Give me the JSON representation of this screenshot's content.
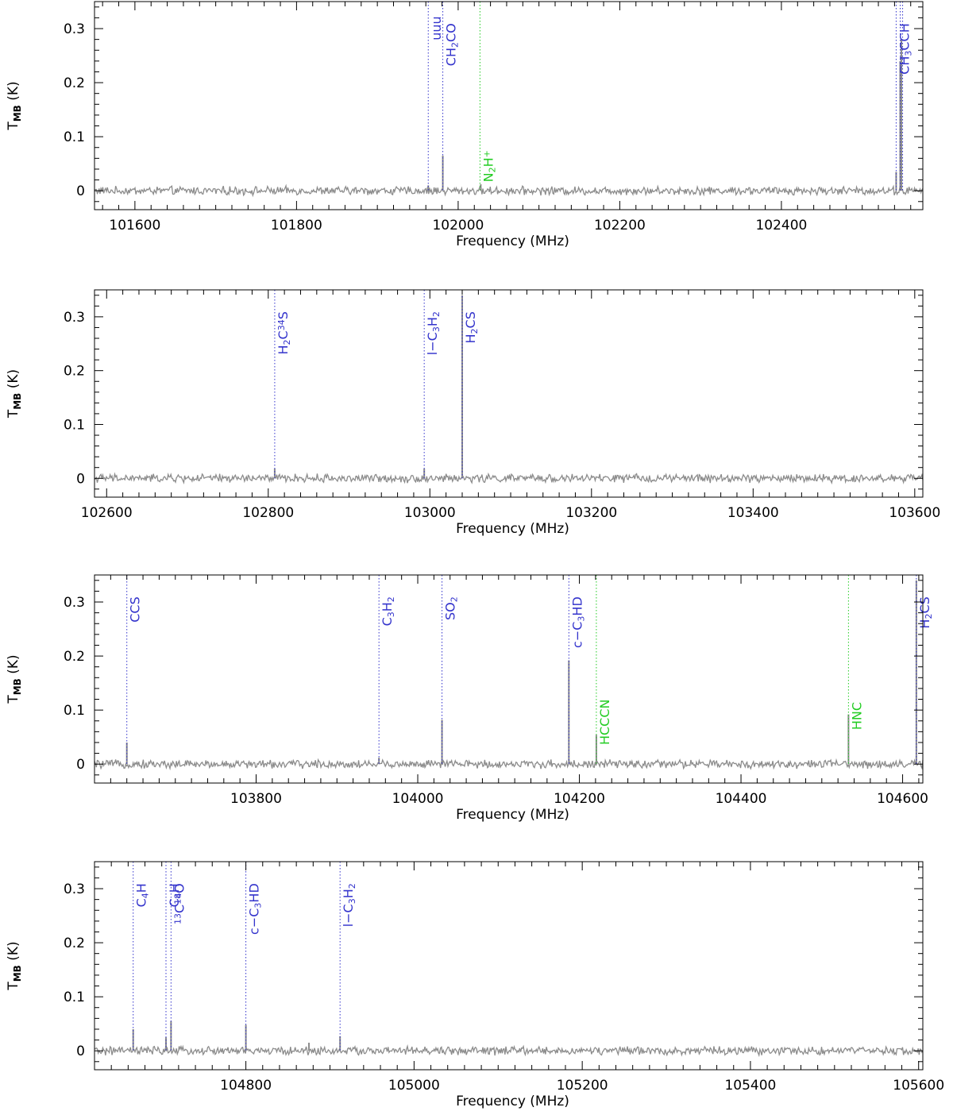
{
  "colors": {
    "spectrum": "#8c8c8c",
    "axis": "#000000",
    "blue": "#3333cc",
    "green": "#22cc22"
  },
  "chart_data": [
    {
      "type": "line",
      "xlabel": "Frequency (MHz)",
      "ylabel": [
        "T",
        "MB",
        " (K)"
      ],
      "xlim": [
        101550,
        102575
      ],
      "ylim": [
        -0.035,
        0.35
      ],
      "xticks": [
        101600,
        101800,
        102000,
        102200,
        102400
      ],
      "xtick_labels": [
        "101600",
        "101800",
        "102000",
        "102200",
        "102400"
      ],
      "yticks": [
        0,
        0.1,
        0.2,
        0.3
      ],
      "ytick_labels": [
        "0",
        "0.1",
        "0.2",
        "0.3"
      ],
      "peaks": [
        {
          "x": 101963,
          "y": 0.01
        },
        {
          "x": 101981,
          "y": 0.065
        },
        {
          "x": 102028,
          "y": 0.012
        },
        {
          "x": 102542,
          "y": 0.035
        },
        {
          "x": 102547,
          "y": 0.24
        },
        {
          "x": 102548.5,
          "y": 0.28
        }
      ],
      "lines": [
        {
          "x": 101963,
          "color": "blue",
          "label": [
            {
              "t": "uuu"
            }
          ],
          "ly": 0.323
        },
        {
          "x": 101981,
          "color": "blue",
          "label": [
            {
              "t": "CH"
            },
            {
              "t": "2",
              "s": "sub"
            },
            {
              "t": "CO"
            }
          ],
          "ly": 0.31
        },
        {
          "x": 102027,
          "color": "green",
          "label": [
            {
              "t": "N"
            },
            {
              "t": "2",
              "s": "sub"
            },
            {
              "t": "H"
            },
            {
              "t": "+",
              "s": "sup"
            }
          ],
          "ly": 0.075
        },
        {
          "x": 102542,
          "color": "blue",
          "label": [
            {
              "t": "CH"
            },
            {
              "t": "3",
              "s": "sub"
            },
            {
              "t": "CCH"
            }
          ],
          "ly": 0.31
        },
        {
          "x": 102547,
          "color": "blue",
          "label": [],
          "ly": 0
        },
        {
          "x": 102550,
          "color": "blue",
          "label": [],
          "ly": 0
        }
      ]
    },
    {
      "type": "line",
      "xlabel": "Frequency (MHz)",
      "ylabel": [
        "T",
        "MB",
        " (K)"
      ],
      "xlim": [
        102585,
        103610
      ],
      "ylim": [
        -0.035,
        0.35
      ],
      "xticks": [
        102600,
        102800,
        103000,
        103200,
        103400,
        103600
      ],
      "xtick_labels": [
        "102600",
        "102800",
        "103000",
        "103200",
        "103400",
        "103600"
      ],
      "yticks": [
        0,
        0.1,
        0.2,
        0.3
      ],
      "ytick_labels": [
        "0",
        "0.1",
        "0.2",
        "0.3"
      ],
      "peaks": [
        {
          "x": 102808,
          "y": 0.018
        },
        {
          "x": 102993,
          "y": 0.018
        },
        {
          "x": 103040,
          "y": 0.34
        }
      ],
      "lines": [
        {
          "x": 102808,
          "color": "blue",
          "label": [
            {
              "t": "H"
            },
            {
              "t": "2",
              "s": "sub"
            },
            {
              "t": "C"
            },
            {
              "t": "34",
              "s": "sup"
            },
            {
              "t": "S"
            }
          ],
          "ly": 0.31
        },
        {
          "x": 102993,
          "color": "blue",
          "label": [
            {
              "t": "l−C"
            },
            {
              "t": "3",
              "s": "sub"
            },
            {
              "t": "H"
            },
            {
              "t": "2",
              "s": "sub"
            }
          ],
          "ly": 0.31
        },
        {
          "x": 103040,
          "color": "blue",
          "label": [
            {
              "t": "H"
            },
            {
              "t": "2",
              "s": "sub"
            },
            {
              "t": "CS"
            }
          ],
          "ly": 0.31
        }
      ]
    },
    {
      "type": "line",
      "xlabel": "Frequency (MHz)",
      "ylabel": [
        "T",
        "MB",
        " (K)"
      ],
      "xlim": [
        103600,
        104625
      ],
      "ylim": [
        -0.035,
        0.35
      ],
      "xticks": [
        103800,
        104000,
        104200,
        104400,
        104600
      ],
      "xtick_labels": [
        "103800",
        "104000",
        "104200",
        "104400",
        "104600"
      ],
      "yticks": [
        0,
        0.1,
        0.2,
        0.3
      ],
      "ytick_labels": [
        "0",
        "0.1",
        "0.2",
        "0.3"
      ],
      "peaks": [
        {
          "x": 103640,
          "y": 0.04
        },
        {
          "x": 103952,
          "y": 0.012
        },
        {
          "x": 104030,
          "y": 0.082
        },
        {
          "x": 104187,
          "y": 0.192
        },
        {
          "x": 104221,
          "y": 0.054
        },
        {
          "x": 104533,
          "y": 0.092
        },
        {
          "x": 104617,
          "y": 0.34
        }
      ],
      "lines": [
        {
          "x": 103640,
          "color": "blue",
          "label": [
            {
              "t": "CCS"
            }
          ],
          "ly": 0.31
        },
        {
          "x": 103952,
          "color": "blue",
          "label": [
            {
              "t": "C"
            },
            {
              "t": "3",
              "s": "sub"
            },
            {
              "t": "H"
            },
            {
              "t": "2",
              "s": "sub"
            }
          ],
          "ly": 0.31
        },
        {
          "x": 104030,
          "color": "blue",
          "label": [
            {
              "t": "SO"
            },
            {
              "t": "2",
              "s": "sub"
            }
          ],
          "ly": 0.31
        },
        {
          "x": 104187,
          "color": "blue",
          "label": [
            {
              "t": "c−C"
            },
            {
              "t": "3",
              "s": "sub"
            },
            {
              "t": "HD"
            }
          ],
          "ly": 0.31
        },
        {
          "x": 104221,
          "color": "green",
          "label": [
            {
              "t": "HCCCN"
            }
          ],
          "ly": 0.12
        },
        {
          "x": 104533,
          "color": "green",
          "label": [
            {
              "t": "HNC"
            }
          ],
          "ly": 0.115
        },
        {
          "x": 104617,
          "color": "blue",
          "label": [
            {
              "t": "H"
            },
            {
              "t": "2",
              "s": "sub"
            },
            {
              "t": "CS"
            }
          ],
          "ly": 0.31
        }
      ]
    },
    {
      "type": "line",
      "xlabel": "Frequency (MHz)",
      "ylabel": [
        "T",
        "MB",
        " (K)"
      ],
      "xlim": [
        104620,
        105605
      ],
      "ylim": [
        -0.035,
        0.35
      ],
      "xticks": [
        104800,
        105000,
        105200,
        105400,
        105600
      ],
      "xtick_labels": [
        "104800",
        "105000",
        "105200",
        "105400",
        "105600"
      ],
      "yticks": [
        0,
        0.1,
        0.2,
        0.3
      ],
      "ytick_labels": [
        "0",
        "0.1",
        "0.2",
        "0.3"
      ],
      "peaks": [
        {
          "x": 104666,
          "y": 0.04
        },
        {
          "x": 104705,
          "y": 0.025
        },
        {
          "x": 104711,
          "y": 0.055
        },
        {
          "x": 104800,
          "y": 0.048
        },
        {
          "x": 104875,
          "y": 0.015
        },
        {
          "x": 104912,
          "y": 0.027
        }
      ],
      "lines": [
        {
          "x": 104666,
          "color": "blue",
          "label": [
            {
              "t": "C"
            },
            {
              "t": "4",
              "s": "sub"
            },
            {
              "t": "H"
            }
          ],
          "ly": 0.31
        },
        {
          "x": 104705,
          "color": "blue",
          "label": [
            {
              "t": "C"
            },
            {
              "t": "4",
              "s": "sub"
            },
            {
              "t": "H"
            }
          ],
          "ly": 0.31
        },
        {
          "x": 104711,
          "color": "blue",
          "label": [
            {
              "t": "13",
              "s": "sup"
            },
            {
              "t": "C"
            },
            {
              "t": "18",
              "s": "sup"
            },
            {
              "t": "O"
            }
          ],
          "ly": 0.31
        },
        {
          "x": 104800,
          "color": "blue",
          "label": [
            {
              "t": "c−C"
            },
            {
              "t": "3",
              "s": "sub"
            },
            {
              "t": "HD"
            }
          ],
          "ly": 0.31
        },
        {
          "x": 104912,
          "color": "blue",
          "label": [
            {
              "t": "l−C"
            },
            {
              "t": "3",
              "s": "sub"
            },
            {
              "t": "H"
            },
            {
              "t": "2",
              "s": "sub"
            }
          ],
          "ly": 0.31
        }
      ]
    }
  ]
}
